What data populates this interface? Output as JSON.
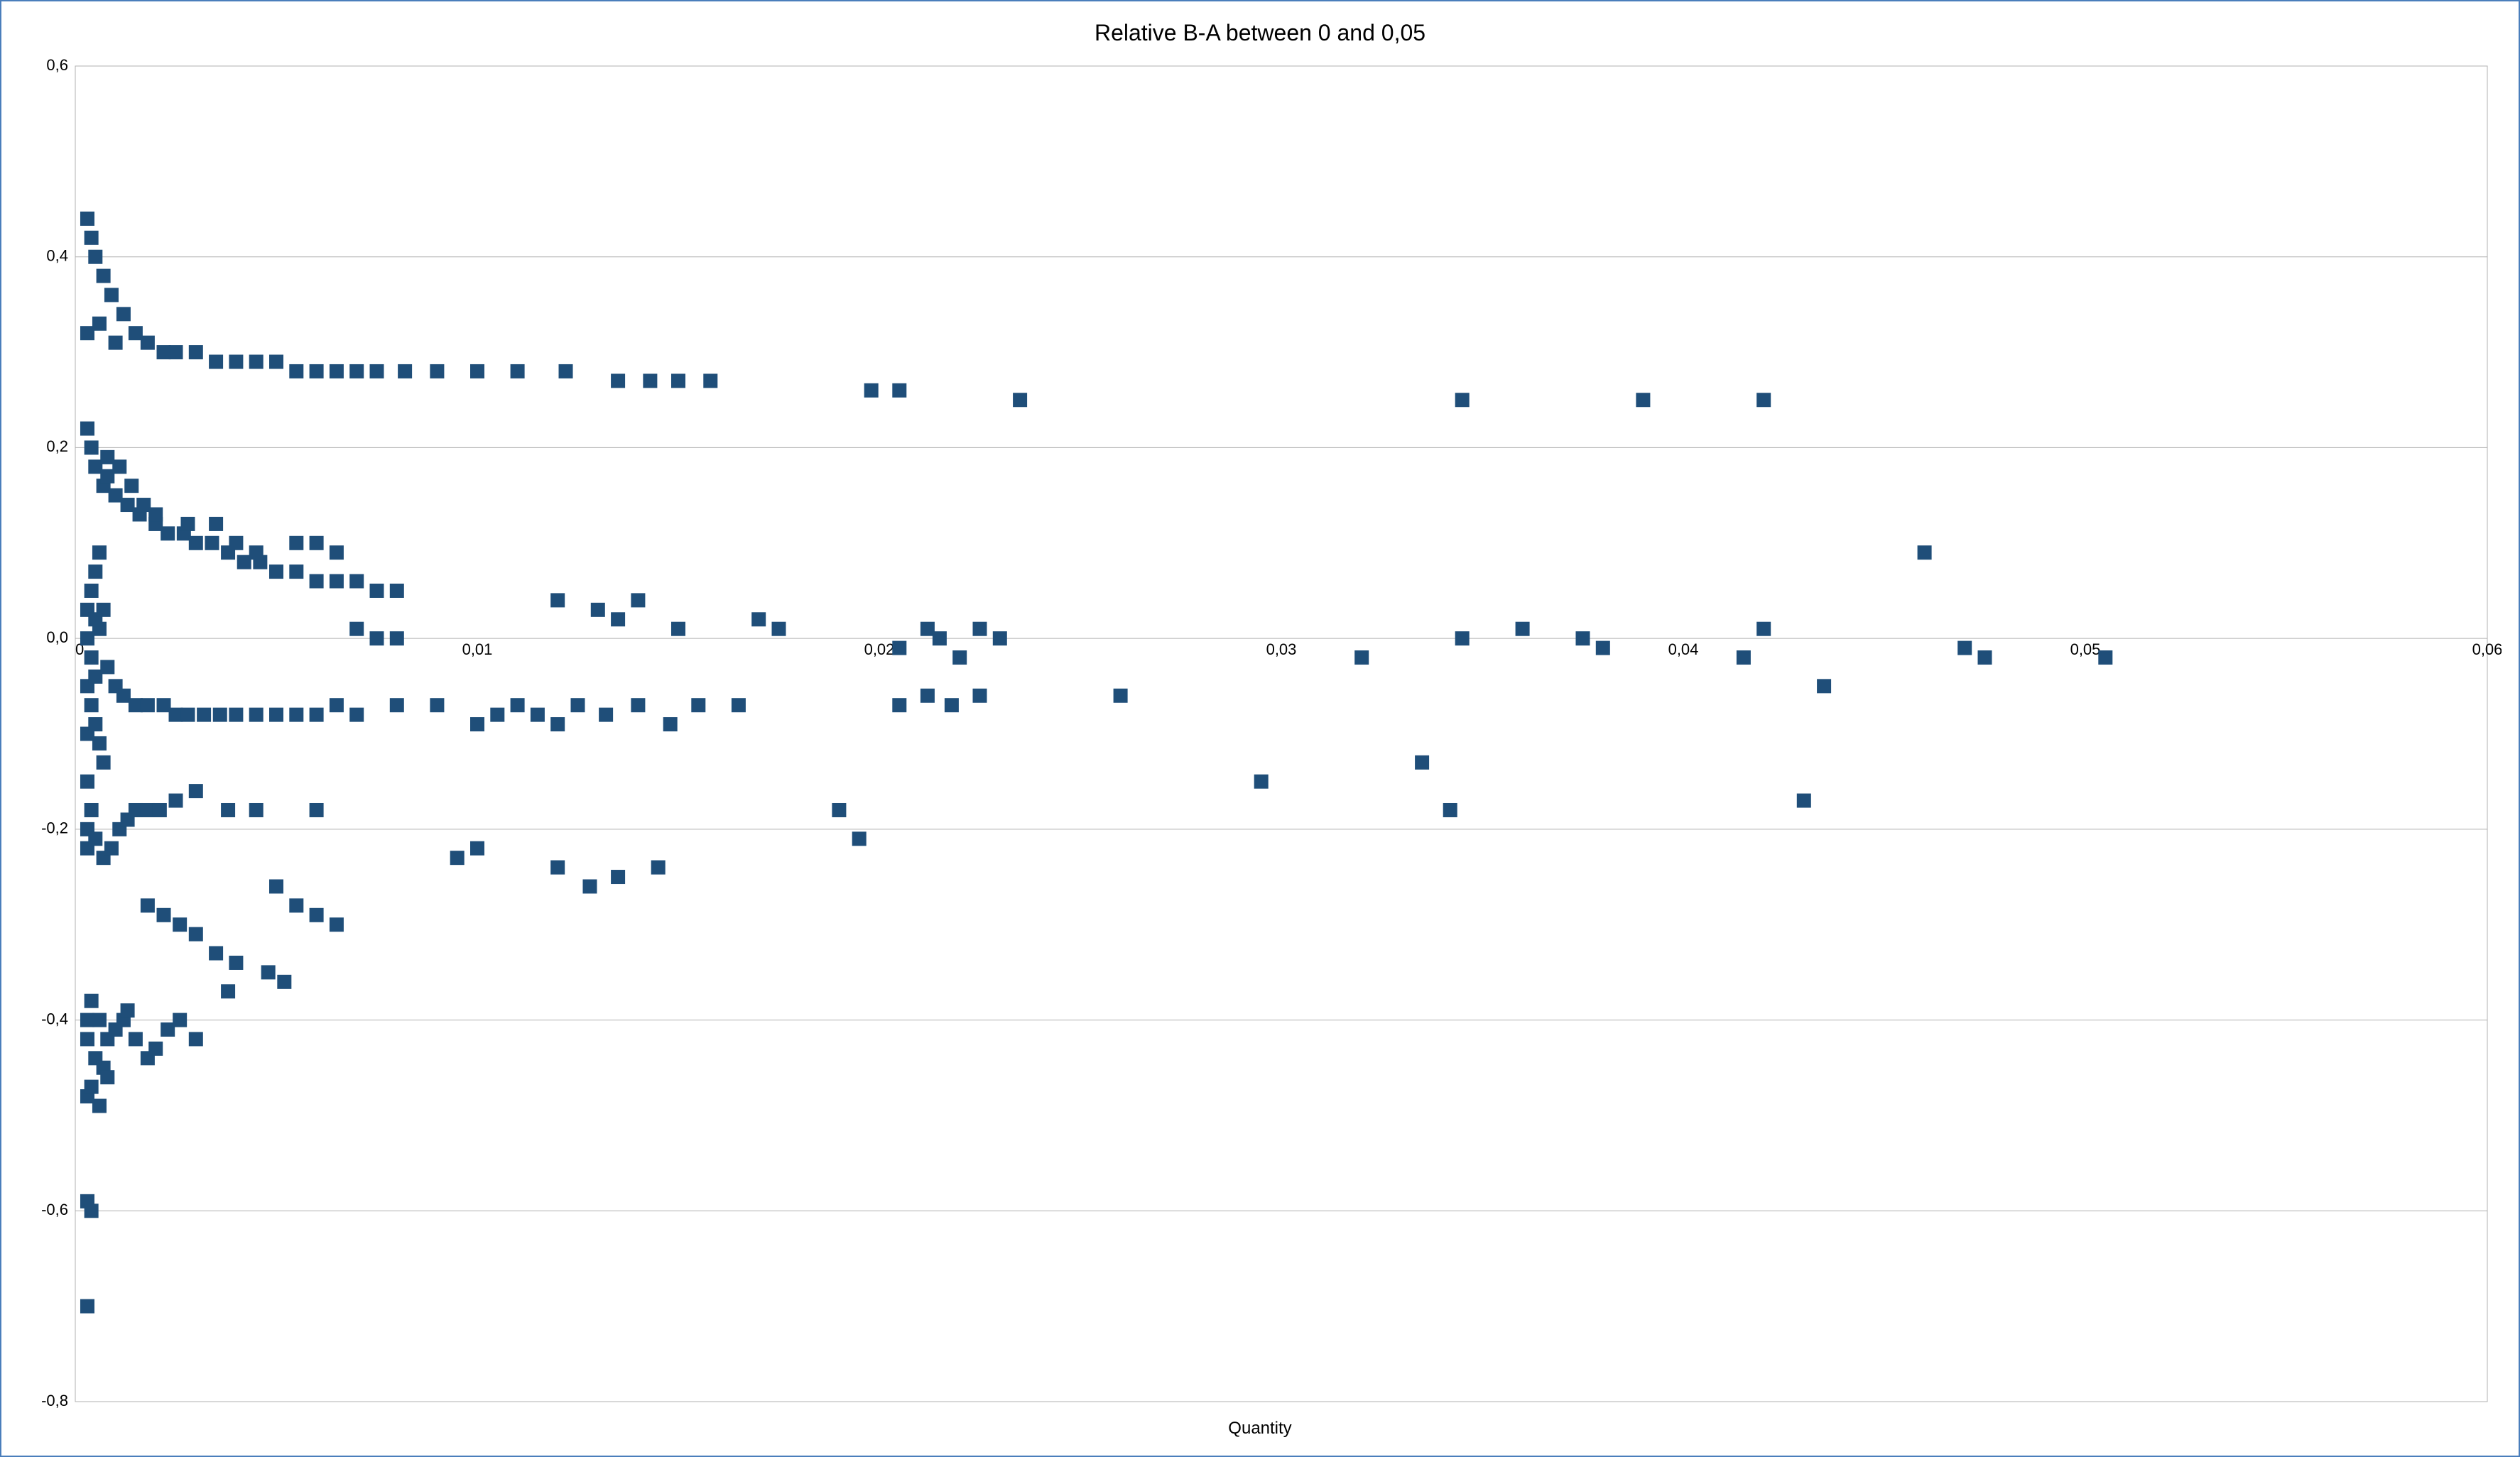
{
  "chart": {
    "type": "scatter",
    "title": "Relative B-A  between 0 and 0,05",
    "title_fontsize": 32,
    "title_color": "#000000",
    "xlabel": "Quantity",
    "xlabel_fontsize": 24,
    "xlabel_color": "#000000",
    "frame_border_color": "#4a7ebb",
    "frame_border_width": 2,
    "background_color": "#ffffff",
    "plot_background": "#ffffff",
    "grid_color": "#b0b0b0",
    "grid_width": 1,
    "axis_line_color": "#b0b0b0",
    "tick_label_color": "#000000",
    "tick_label_fontsize": 22,
    "marker_color": "#1f4e79",
    "marker_size": 20,
    "marker_shape": "square",
    "xlim": [
      0,
      0.06
    ],
    "ylim": [
      -0.8,
      0.6
    ],
    "xticks": [
      0,
      0.01,
      0.02,
      0.03,
      0.04,
      0.05,
      0.06
    ],
    "xtick_labels": [
      "0",
      "0,01",
      "0,02",
      "0,03",
      "0,04",
      "0,05",
      "0,06"
    ],
    "yticks": [
      -0.8,
      -0.6,
      -0.4,
      -0.2,
      0.0,
      0.2,
      0.4,
      0.6
    ],
    "ytick_labels": [
      "-0,8",
      "-0,6",
      "-0,4",
      "-0,2",
      "0,0",
      "0,2",
      "0,4",
      "0,6"
    ],
    "points": [
      [
        0.0003,
        0.44
      ],
      [
        0.0004,
        0.42
      ],
      [
        0.0005,
        0.4
      ],
      [
        0.0007,
        0.38
      ],
      [
        0.0009,
        0.36
      ],
      [
        0.0012,
        0.34
      ],
      [
        0.0015,
        0.32
      ],
      [
        0.0003,
        0.32
      ],
      [
        0.0006,
        0.33
      ],
      [
        0.001,
        0.31
      ],
      [
        0.0018,
        0.31
      ],
      [
        0.0022,
        0.3
      ],
      [
        0.0025,
        0.3
      ],
      [
        0.003,
        0.3
      ],
      [
        0.0035,
        0.29
      ],
      [
        0.004,
        0.29
      ],
      [
        0.0045,
        0.29
      ],
      [
        0.005,
        0.29
      ],
      [
        0.0055,
        0.28
      ],
      [
        0.006,
        0.28
      ],
      [
        0.0065,
        0.28
      ],
      [
        0.007,
        0.28
      ],
      [
        0.0075,
        0.28
      ],
      [
        0.0082,
        0.28
      ],
      [
        0.009,
        0.28
      ],
      [
        0.01,
        0.28
      ],
      [
        0.011,
        0.28
      ],
      [
        0.0122,
        0.28
      ],
      [
        0.0135,
        0.27
      ],
      [
        0.0143,
        0.27
      ],
      [
        0.015,
        0.27
      ],
      [
        0.0158,
        0.27
      ],
      [
        0.0198,
        0.26
      ],
      [
        0.0205,
        0.26
      ],
      [
        0.0235,
        0.25
      ],
      [
        0.0345,
        0.25
      ],
      [
        0.039,
        0.25
      ],
      [
        0.042,
        0.25
      ],
      [
        0.0003,
        0.22
      ],
      [
        0.0004,
        0.2
      ],
      [
        0.0005,
        0.18
      ],
      [
        0.0007,
        0.16
      ],
      [
        0.0008,
        0.17
      ],
      [
        0.001,
        0.15
      ],
      [
        0.0013,
        0.14
      ],
      [
        0.0016,
        0.13
      ],
      [
        0.002,
        0.12
      ],
      [
        0.0023,
        0.11
      ],
      [
        0.0027,
        0.11
      ],
      [
        0.003,
        0.1
      ],
      [
        0.0034,
        0.1
      ],
      [
        0.0038,
        0.09
      ],
      [
        0.0042,
        0.08
      ],
      [
        0.0046,
        0.08
      ],
      [
        0.005,
        0.07
      ],
      [
        0.0055,
        0.07
      ],
      [
        0.006,
        0.06
      ],
      [
        0.0065,
        0.06
      ],
      [
        0.004,
        0.1
      ],
      [
        0.0045,
        0.09
      ],
      [
        0.0008,
        0.19
      ],
      [
        0.0011,
        0.18
      ],
      [
        0.0014,
        0.16
      ],
      [
        0.0017,
        0.14
      ],
      [
        0.002,
        0.13
      ],
      [
        0.0028,
        0.12
      ],
      [
        0.0035,
        0.12
      ],
      [
        0.0055,
        0.1
      ],
      [
        0.006,
        0.1
      ],
      [
        0.0065,
        0.09
      ],
      [
        0.007,
        0.06
      ],
      [
        0.0075,
        0.05
      ],
      [
        0.008,
        0.05
      ],
      [
        0.012,
        0.04
      ],
      [
        0.013,
        0.03
      ],
      [
        0.0135,
        0.02
      ],
      [
        0.014,
        0.04
      ],
      [
        0.015,
        0.01
      ],
      [
        0.017,
        0.02
      ],
      [
        0.0175,
        0.01
      ],
      [
        0.0205,
        -0.01
      ],
      [
        0.0212,
        0.01
      ],
      [
        0.0215,
        0.0
      ],
      [
        0.022,
        -0.02
      ],
      [
        0.0225,
        0.01
      ],
      [
        0.023,
        0.0
      ],
      [
        0.046,
        0.09
      ],
      [
        0.0003,
        0.0
      ],
      [
        0.0003,
        -0.05
      ],
      [
        0.0003,
        -0.1
      ],
      [
        0.0003,
        0.03
      ],
      [
        0.0004,
        -0.02
      ],
      [
        0.0004,
        -0.07
      ],
      [
        0.0005,
        -0.04
      ],
      [
        0.0005,
        -0.09
      ],
      [
        0.0006,
        -0.11
      ],
      [
        0.0007,
        -0.13
      ],
      [
        0.0006,
        0.01
      ],
      [
        0.0008,
        -0.03
      ],
      [
        0.001,
        -0.05
      ],
      [
        0.0012,
        -0.06
      ],
      [
        0.0015,
        -0.07
      ],
      [
        0.0018,
        -0.07
      ],
      [
        0.0022,
        -0.07
      ],
      [
        0.0025,
        -0.08
      ],
      [
        0.0028,
        -0.08
      ],
      [
        0.0032,
        -0.08
      ],
      [
        0.0036,
        -0.08
      ],
      [
        0.004,
        -0.08
      ],
      [
        0.0045,
        -0.08
      ],
      [
        0.005,
        -0.08
      ],
      [
        0.0055,
        -0.08
      ],
      [
        0.006,
        -0.08
      ],
      [
        0.0065,
        -0.07
      ],
      [
        0.007,
        -0.08
      ],
      [
        0.008,
        -0.07
      ],
      [
        0.009,
        -0.07
      ],
      [
        0.01,
        -0.09
      ],
      [
        0.0105,
        -0.08
      ],
      [
        0.011,
        -0.07
      ],
      [
        0.0115,
        -0.08
      ],
      [
        0.012,
        -0.09
      ],
      [
        0.0125,
        -0.07
      ],
      [
        0.0132,
        -0.08
      ],
      [
        0.014,
        -0.07
      ],
      [
        0.0148,
        -0.09
      ],
      [
        0.0155,
        -0.07
      ],
      [
        0.0165,
        -0.07
      ],
      [
        0.0205,
        -0.07
      ],
      [
        0.0212,
        -0.06
      ],
      [
        0.0218,
        -0.07
      ],
      [
        0.0225,
        -0.06
      ],
      [
        0.026,
        -0.06
      ],
      [
        0.032,
        -0.02
      ],
      [
        0.0345,
        0.0
      ],
      [
        0.036,
        0.01
      ],
      [
        0.0375,
        0.0
      ],
      [
        0.038,
        -0.01
      ],
      [
        0.0415,
        -0.02
      ],
      [
        0.042,
        0.01
      ],
      [
        0.0435,
        -0.05
      ],
      [
        0.047,
        -0.01
      ],
      [
        0.0475,
        -0.02
      ],
      [
        0.0505,
        -0.02
      ],
      [
        0.007,
        0.01
      ],
      [
        0.0075,
        0.0
      ],
      [
        0.008,
        0.0
      ],
      [
        0.0295,
        -0.15
      ],
      [
        0.0335,
        -0.13
      ],
      [
        0.0342,
        -0.18
      ],
      [
        0.043,
        -0.17
      ],
      [
        0.0003,
        -0.2
      ],
      [
        0.0003,
        -0.22
      ],
      [
        0.0003,
        -0.15
      ],
      [
        0.0004,
        -0.18
      ],
      [
        0.0005,
        -0.21
      ],
      [
        0.0007,
        -0.23
      ],
      [
        0.0009,
        -0.22
      ],
      [
        0.0011,
        -0.2
      ],
      [
        0.0013,
        -0.19
      ],
      [
        0.0015,
        -0.18
      ],
      [
        0.0018,
        -0.18
      ],
      [
        0.0021,
        -0.18
      ],
      [
        0.0025,
        -0.17
      ],
      [
        0.003,
        -0.16
      ],
      [
        0.0038,
        -0.18
      ],
      [
        0.0045,
        -0.18
      ],
      [
        0.006,
        -0.18
      ],
      [
        0.0095,
        -0.23
      ],
      [
        0.01,
        -0.22
      ],
      [
        0.012,
        -0.24
      ],
      [
        0.0128,
        -0.26
      ],
      [
        0.0135,
        -0.25
      ],
      [
        0.0145,
        -0.24
      ],
      [
        0.0195,
        -0.21
      ],
      [
        0.019,
        -0.18
      ],
      [
        0.005,
        -0.26
      ],
      [
        0.0055,
        -0.28
      ],
      [
        0.006,
        -0.29
      ],
      [
        0.0065,
        -0.3
      ],
      [
        0.0018,
        -0.28
      ],
      [
        0.0022,
        -0.29
      ],
      [
        0.0026,
        -0.3
      ],
      [
        0.003,
        -0.31
      ],
      [
        0.0035,
        -0.33
      ],
      [
        0.004,
        -0.34
      ],
      [
        0.0048,
        -0.35
      ],
      [
        0.0052,
        -0.36
      ],
      [
        0.0038,
        -0.37
      ],
      [
        0.0003,
        -0.4
      ],
      [
        0.0003,
        -0.42
      ],
      [
        0.0004,
        -0.38
      ],
      [
        0.0005,
        -0.44
      ],
      [
        0.0006,
        -0.4
      ],
      [
        0.0007,
        -0.45
      ],
      [
        0.0008,
        -0.42
      ],
      [
        0.001,
        -0.41
      ],
      [
        0.0012,
        -0.4
      ],
      [
        0.0013,
        -0.39
      ],
      [
        0.0015,
        -0.42
      ],
      [
        0.0018,
        -0.44
      ],
      [
        0.002,
        -0.43
      ],
      [
        0.0023,
        -0.41
      ],
      [
        0.0026,
        -0.4
      ],
      [
        0.003,
        -0.42
      ],
      [
        0.0003,
        -0.48
      ],
      [
        0.0004,
        -0.47
      ],
      [
        0.0006,
        -0.49
      ],
      [
        0.0008,
        -0.46
      ],
      [
        0.0003,
        -0.59
      ],
      [
        0.0004,
        -0.6
      ],
      [
        0.0003,
        -0.7
      ],
      [
        0.0004,
        0.05
      ],
      [
        0.0005,
        0.07
      ],
      [
        0.0006,
        0.09
      ],
      [
        0.0005,
        0.02
      ],
      [
        0.0007,
        0.03
      ]
    ]
  }
}
